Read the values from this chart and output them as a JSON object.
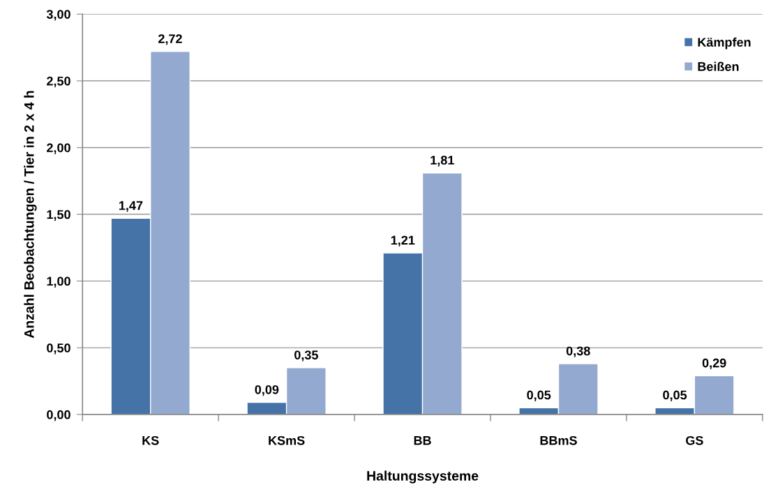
{
  "chart_data": {
    "type": "bar",
    "xlabel": "Haltungssysteme",
    "ylabel": "Anzahl Beobachtungen / Tier in 2 x 4 h",
    "categories": [
      "KS",
      "KSmS",
      "BB",
      "BBmS",
      "GS"
    ],
    "series": [
      {
        "name": "Kämpfen",
        "color": "#4572a7",
        "values": [
          1.47,
          0.09,
          1.21,
          0.05,
          0.05
        ],
        "value_labels": [
          "1,47",
          "0,09",
          "1,21",
          "0,05",
          "0,05"
        ]
      },
      {
        "name": "Beißen",
        "color": "#93a9cf",
        "values": [
          2.72,
          0.35,
          1.81,
          0.38,
          0.29
        ],
        "value_labels": [
          "2,72",
          "0,35",
          "1,81",
          "0,38",
          "0,29"
        ]
      }
    ],
    "ylim": [
      0,
      3
    ],
    "yticks": [
      {
        "value": 0,
        "label": "0,00"
      },
      {
        "value": 0.5,
        "label": "0,50"
      },
      {
        "value": 1,
        "label": "1,00"
      },
      {
        "value": 1.5,
        "label": "1,50"
      },
      {
        "value": 2,
        "label": "2,00"
      },
      {
        "value": 2.5,
        "label": "2,50"
      },
      {
        "value": 3,
        "label": "3,00"
      }
    ],
    "grid": "y",
    "legend": "top right"
  }
}
